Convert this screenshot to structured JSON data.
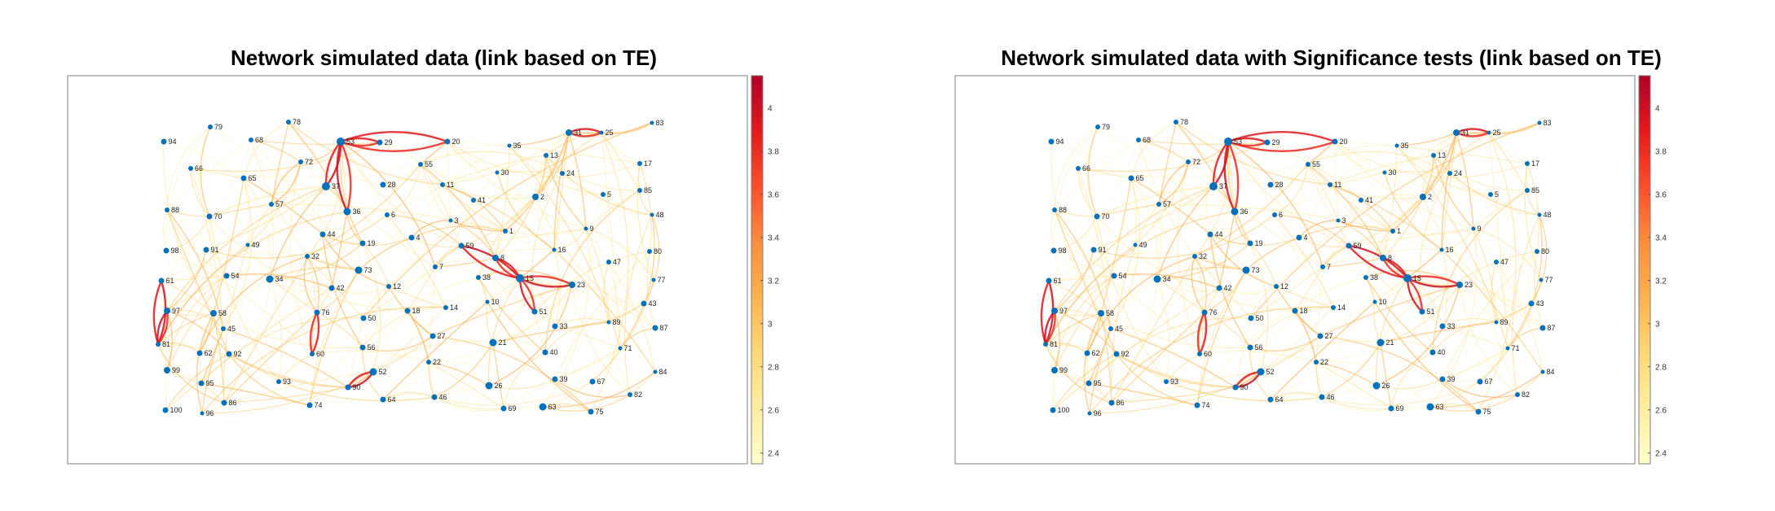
{
  "chart_data": [
    {
      "type": "network",
      "title": "Network simulated data (link based on TE)",
      "colorbar": {
        "min": 2.35,
        "max": 4.15,
        "ticks": [
          "2.4",
          "2.6",
          "2.8",
          "3",
          "3.2",
          "3.4",
          "3.6",
          "3.8",
          "4"
        ],
        "low_color": "#ffffcc",
        "high_color": "#b10026"
      },
      "nodes": [
        "1",
        "2",
        "3",
        "4",
        "5",
        "6",
        "7",
        "8",
        "9",
        "10",
        "11",
        "12",
        "13",
        "14",
        "15",
        "16",
        "17",
        "18",
        "19",
        "20",
        "21",
        "22",
        "23",
        "24",
        "25",
        "26",
        "27",
        "28",
        "29",
        "30",
        "31",
        "32",
        "33",
        "34",
        "35",
        "36",
        "37",
        "38",
        "39",
        "40",
        "41",
        "42",
        "43",
        "44",
        "45",
        "46",
        "47",
        "48",
        "49",
        "50",
        "51",
        "52",
        "53",
        "54",
        "55",
        "56",
        "57",
        "58",
        "59",
        "60",
        "61",
        "62",
        "63",
        "64",
        "65",
        "66",
        "67",
        "68",
        "69",
        "70",
        "71",
        "72",
        "73",
        "74",
        "75",
        "76",
        "77",
        "78",
        "79",
        "80",
        "81",
        "82",
        "83",
        "84",
        "85",
        "86",
        "87",
        "88",
        "89",
        "90",
        "91",
        "92",
        "93",
        "94",
        "95",
        "96",
        "97",
        "98",
        "99",
        "100"
      ],
      "strong_links": [
        [
          "53",
          "29"
        ],
        [
          "53",
          "37"
        ],
        [
          "53",
          "36"
        ],
        [
          "31",
          "25"
        ],
        [
          "61",
          "81"
        ],
        [
          "97",
          "81"
        ],
        [
          "76",
          "60"
        ],
        [
          "52",
          "90"
        ],
        [
          "15",
          "23"
        ],
        [
          "8",
          "15"
        ],
        [
          "59",
          "15"
        ],
        [
          "15",
          "51"
        ],
        [
          "53",
          "20"
        ]
      ]
    },
    {
      "type": "network",
      "title": "Network simulated data with Significance tests (link based on TE)",
      "colorbar": {
        "min": 2.35,
        "max": 4.15,
        "ticks": [
          "2.4",
          "2.6",
          "2.8",
          "3",
          "3.2",
          "3.4",
          "3.6",
          "3.8",
          "4"
        ],
        "low_color": "#ffffcc",
        "high_color": "#b10026"
      },
      "nodes": [
        "1",
        "2",
        "3",
        "4",
        "5",
        "6",
        "7",
        "8",
        "9",
        "10",
        "11",
        "12",
        "13",
        "14",
        "15",
        "16",
        "17",
        "18",
        "19",
        "20",
        "21",
        "22",
        "23",
        "24",
        "25",
        "26",
        "27",
        "28",
        "29",
        "30",
        "31",
        "32",
        "33",
        "34",
        "35",
        "36",
        "37",
        "38",
        "39",
        "40",
        "41",
        "42",
        "43",
        "44",
        "45",
        "46",
        "47",
        "48",
        "49",
        "50",
        "51",
        "52",
        "53",
        "54",
        "55",
        "56",
        "57",
        "58",
        "59",
        "60",
        "61",
        "62",
        "63",
        "64",
        "65",
        "66",
        "67",
        "68",
        "69",
        "70",
        "71",
        "72",
        "73",
        "74",
        "75",
        "76",
        "77",
        "78",
        "79",
        "80",
        "81",
        "82",
        "83",
        "84",
        "85",
        "86",
        "87",
        "88",
        "89",
        "90",
        "91",
        "92",
        "93",
        "94",
        "95",
        "96",
        "97",
        "98",
        "99",
        "100"
      ],
      "strong_links": [
        [
          "53",
          "29"
        ],
        [
          "53",
          "37"
        ],
        [
          "53",
          "36"
        ],
        [
          "31",
          "25"
        ],
        [
          "61",
          "81"
        ],
        [
          "97",
          "81"
        ],
        [
          "76",
          "60"
        ],
        [
          "52",
          "90"
        ],
        [
          "15",
          "23"
        ],
        [
          "8",
          "15"
        ],
        [
          "59",
          "15"
        ],
        [
          "15",
          "51"
        ],
        [
          "53",
          "20"
        ]
      ]
    }
  ],
  "icons": {
    "node_color": "#0072bd"
  }
}
